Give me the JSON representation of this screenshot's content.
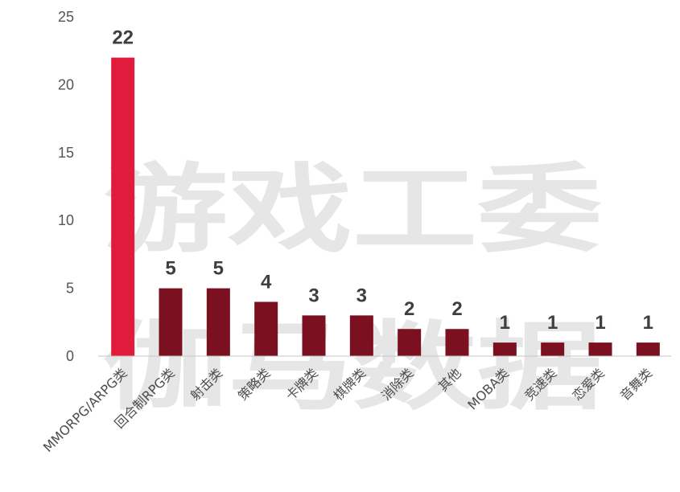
{
  "watermark": {
    "line1": "游戏工委",
    "line2": "伽马数据"
  },
  "chart_data": {
    "type": "bar",
    "categories": [
      "MMORPG/ARPG类",
      "回合制RPG类",
      "射击类",
      "策略类",
      "卡牌类",
      "棋牌类",
      "消除类",
      "其他",
      "MOBA类",
      "竞速类",
      "恋爱类",
      "音舞类"
    ],
    "series": [
      {
        "values": [
          22,
          5,
          5,
          4,
          3,
          3,
          2,
          2,
          1,
          1,
          1,
          1
        ]
      }
    ],
    "ylim": [
      0,
      25
    ],
    "yticks": [
      0,
      5,
      10,
      15,
      20,
      25
    ],
    "grid": false,
    "legend": "none",
    "colors": {
      "highlight": "#e11b3b",
      "default": "#7a1020",
      "axis": "#c6c6c6",
      "text": "#4d4d4d",
      "watermark": "#d7d7d7"
    }
  }
}
